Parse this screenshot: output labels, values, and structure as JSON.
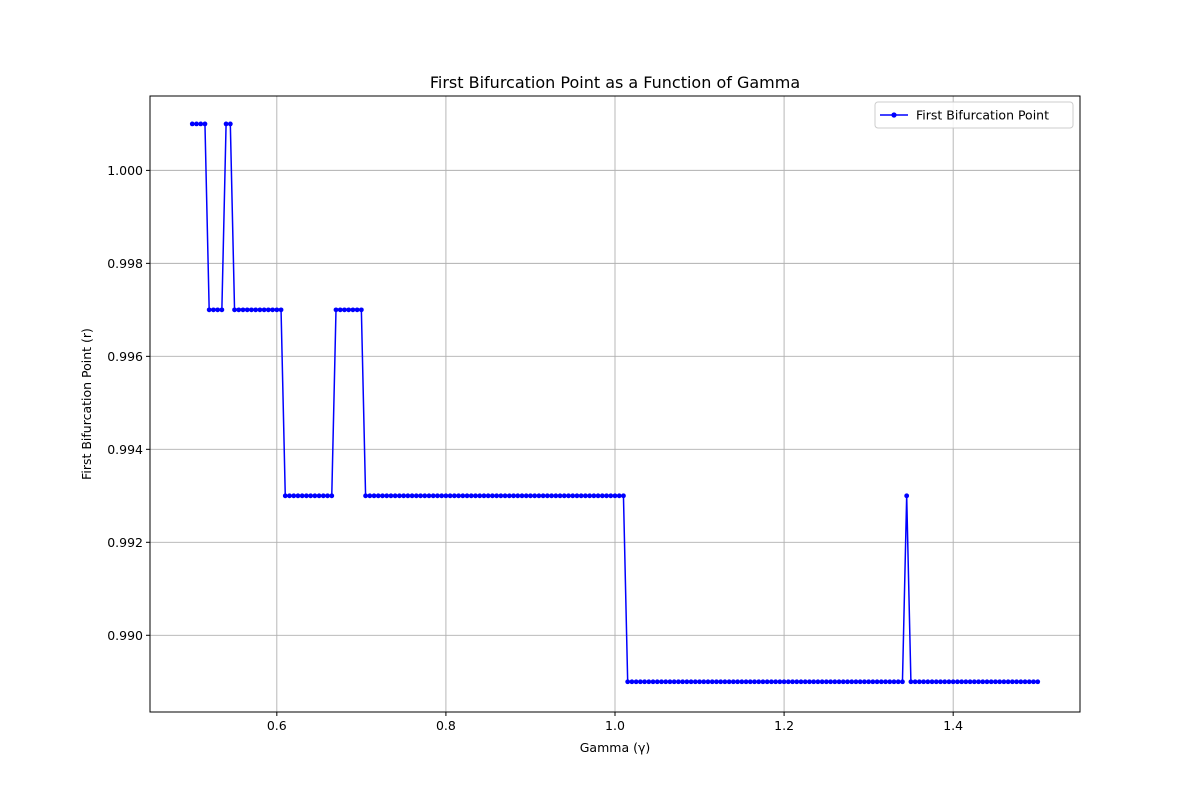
{
  "chart_data": {
    "type": "line",
    "title": "First Bifurcation Point as a Function of Gamma",
    "xlabel": "Gamma (γ)",
    "ylabel": "First Bifurcation Point (r)",
    "xlim": [
      0.45,
      1.55
    ],
    "ylim": [
      0.98835,
      1.0016
    ],
    "xticks": [
      0.6,
      0.8,
      1.0,
      1.2,
      1.4
    ],
    "xtick_labels": [
      "0.6",
      "0.8",
      "1.0",
      "1.2",
      "1.4"
    ],
    "yticks": [
      0.99,
      0.992,
      0.994,
      0.996,
      0.998,
      1.0
    ],
    "ytick_labels": [
      "0.990",
      "0.992",
      "0.994",
      "0.996",
      "0.998",
      "1.000"
    ],
    "grid": true,
    "legend": {
      "position": "upper-right"
    },
    "colors": {
      "series": "#0000ff",
      "grid": "#b0b0b0",
      "axes": "#000000"
    },
    "x_start": 0.5,
    "x_end": 1.5,
    "num_points": 201,
    "series": [
      {
        "name": "First Bifurcation Point",
        "marker": "dot",
        "segments": [
          {
            "from": 0.5,
            "to": 0.515,
            "value": 1.001
          },
          {
            "from": 0.52,
            "to": 0.535,
            "value": 0.997
          },
          {
            "from": 0.54,
            "to": 0.545,
            "value": 1.001
          },
          {
            "from": 0.55,
            "to": 0.605,
            "value": 0.997
          },
          {
            "from": 0.61,
            "to": 0.665,
            "value": 0.993
          },
          {
            "from": 0.67,
            "to": 0.7,
            "value": 0.997
          },
          {
            "from": 0.705,
            "to": 1.01,
            "value": 0.993
          },
          {
            "from": 1.015,
            "to": 1.34,
            "value": 0.989
          },
          {
            "from": 1.345,
            "to": 1.345,
            "value": 0.993
          },
          {
            "from": 1.35,
            "to": 1.5,
            "value": 0.989
          }
        ]
      }
    ]
  }
}
